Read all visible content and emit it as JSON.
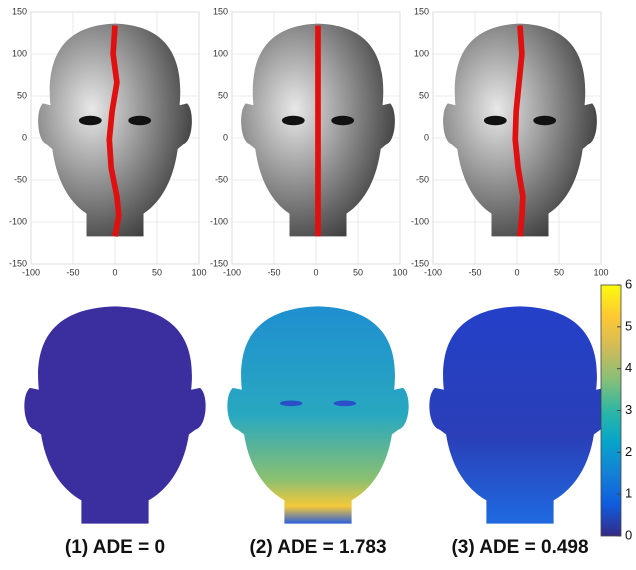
{
  "chart_data": [
    {
      "type": "image",
      "xlim": [
        -100,
        100
      ],
      "ylim": [
        -150,
        150
      ],
      "xticks": [
        -100,
        -50,
        0,
        50,
        100
      ],
      "yticks": [
        -150,
        -100,
        -50,
        0,
        50,
        100,
        150
      ]
    },
    {
      "type": "image",
      "xlim": [
        -100,
        100
      ],
      "ylim": [
        -150,
        150
      ],
      "xticks": [
        -100,
        -50,
        0,
        50,
        100
      ],
      "yticks": [
        -150,
        -100,
        -50,
        0,
        50,
        100,
        150
      ]
    },
    {
      "type": "image",
      "xlim": [
        -100,
        100
      ],
      "ylim": [
        -150,
        150
      ],
      "xticks": [
        -100,
        -50,
        0,
        50,
        100
      ],
      "yticks": [
        -150,
        -100,
        -50,
        0,
        50,
        100,
        150
      ]
    },
    {
      "type": "colorbar",
      "ylim": [
        0,
        6
      ],
      "yticks": [
        0,
        1,
        2,
        3,
        4,
        5,
        6
      ],
      "colors": [
        "#352a87",
        "#0f5cdd",
        "#1481d6",
        "#06a4ca",
        "#2eb7a4",
        "#87bf77",
        "#d1bb59",
        "#fec832",
        "#f9fb0e"
      ]
    }
  ],
  "captions": [
    "(1) ADE = 0",
    "(2) ADE = 1.783",
    "(3) ADE = 0.498"
  ]
}
